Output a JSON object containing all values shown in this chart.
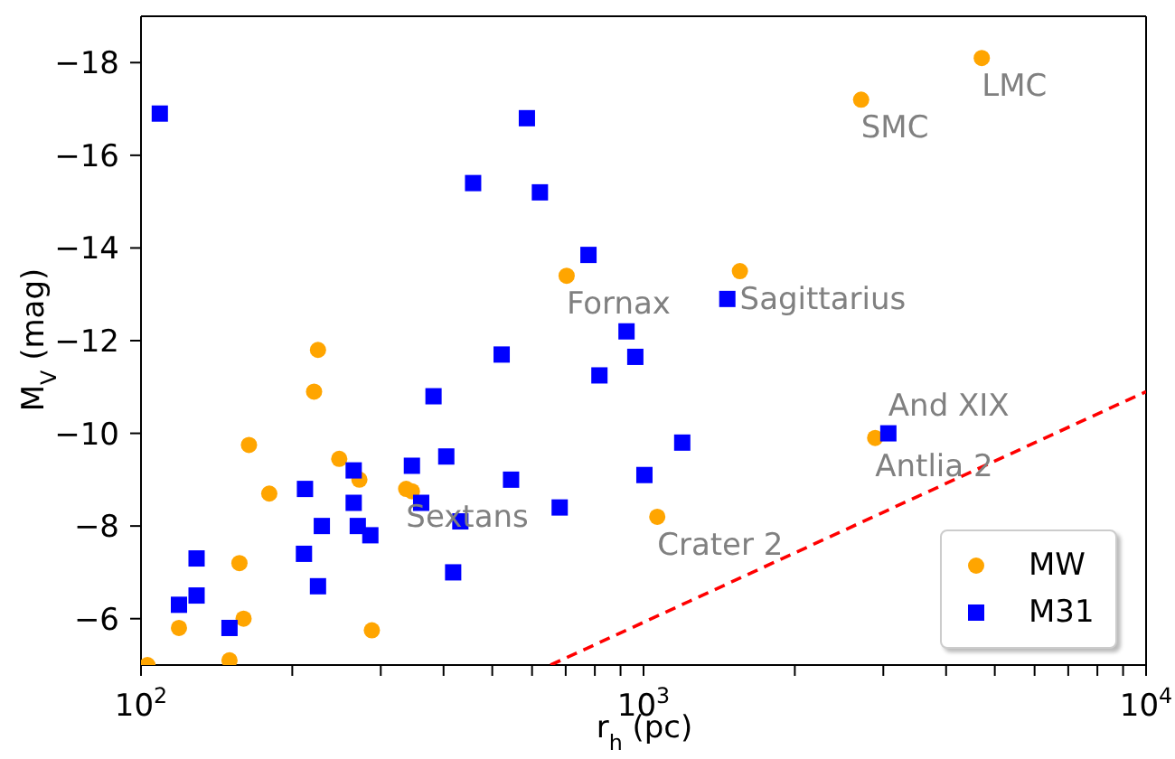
{
  "chart_data": {
    "type": "scatter",
    "xlabel": "r$_{h}$ (pc)",
    "ylabel": "M$_{V}$ (mag)",
    "log": "x",
    "xlim": [
      100,
      10000
    ],
    "xticks": [
      {
        "value": 100,
        "label": "10$^{2}$"
      },
      {
        "value": 200,
        "label": null
      },
      {
        "value": 300,
        "label": null
      },
      {
        "value": 400,
        "label": null
      },
      {
        "value": 500,
        "label": null
      },
      {
        "value": 600,
        "label": null
      },
      {
        "value": 700,
        "label": null
      },
      {
        "value": 800,
        "label": null
      },
      {
        "value": 900,
        "label": null
      },
      {
        "value": 1000,
        "label": "10$^{3}$"
      },
      {
        "value": 2000,
        "label": null
      },
      {
        "value": 3000,
        "label": null
      },
      {
        "value": 4000,
        "label": null
      },
      {
        "value": 5000,
        "label": null
      },
      {
        "value": 6000,
        "label": null
      },
      {
        "value": 7000,
        "label": null
      },
      {
        "value": 8000,
        "label": null
      },
      {
        "value": 9000,
        "label": null
      },
      {
        "value": 10000,
        "label": "10$^{4}$"
      }
    ],
    "ylim": [
      -5,
      -19
    ],
    "yticks": [
      {
        "value": -18,
        "label": "−18"
      },
      {
        "value": -16,
        "label": "−16"
      },
      {
        "value": -14,
        "label": "−14"
      },
      {
        "value": -12,
        "label": "−12"
      },
      {
        "value": -10,
        "label": "−10"
      },
      {
        "value": -8,
        "label": "−8"
      },
      {
        "value": -6,
        "label": "−6"
      }
    ],
    "grid": false,
    "legend": "bottom right",
    "series": [
      {
        "name": "MW",
        "marker": "circle",
        "color": "#ffa500",
        "x": [
          4710,
          2710,
          1555,
          703,
          2890,
          1065,
          221,
          225,
          164,
          248,
          272,
          180,
          337,
          346,
          157,
          119,
          160,
          288,
          103,
          150
        ],
        "values": [
          -18.1,
          -17.2,
          -13.5,
          -13.4,
          -9.9,
          -8.2,
          -10.9,
          -11.8,
          -9.75,
          -9.45,
          -9.0,
          -8.7,
          -8.8,
          -8.75,
          -7.2,
          -5.8,
          -6.0,
          -5.75,
          -5.0,
          -5.1
        ]
      },
      {
        "name": "M31",
        "marker": "square",
        "color": "#0000ff",
        "x": [
          109,
          586,
          458,
          622,
          777,
          925,
          963,
          522,
          817,
          382,
          405,
          346,
          545,
          1004,
          681,
          265,
          212,
          265,
          229,
          270,
          286,
          361,
          432,
          211,
          129,
          225,
          129,
          418,
          119,
          150,
          1194,
          3070,
          1468
        ],
        "values": [
          -16.9,
          -16.8,
          -15.4,
          -15.2,
          -13.85,
          -12.2,
          -11.65,
          -11.7,
          -11.25,
          -10.8,
          -9.5,
          -9.3,
          -9.0,
          -9.1,
          -8.4,
          -9.2,
          -8.8,
          -8.5,
          -8.0,
          -8.0,
          -7.8,
          -8.5,
          -8.1,
          -7.4,
          -7.3,
          -6.7,
          -6.5,
          -7.0,
          -6.3,
          -5.8,
          -9.8,
          -10.0,
          -12.9
        ]
      },
      {
        "type": "line",
        "marker": "none",
        "line_style": "dashed",
        "color": "#ff0000",
        "x": [
          653,
          10000
        ],
        "values": [
          -5,
          -10.9
        ]
      }
    ],
    "annotations": [
      {
        "text": "LMC",
        "x": 4710,
        "y": -18.1
      },
      {
        "text": "SMC",
        "x": 2710,
        "y": -17.2
      },
      {
        "text": "Fornax",
        "x": 703,
        "y": -13.4
      },
      {
        "text": "Sagittarius",
        "x": 1555,
        "y": -13.5
      },
      {
        "text": "And XIX",
        "x": 3070,
        "y": -10.0
      },
      {
        "text": "Antlia 2",
        "x": 2890,
        "y": -9.9
      },
      {
        "text": "Sextans",
        "x": 337,
        "y": -8.8
      },
      {
        "text": "Crater 2",
        "x": 1065,
        "y": -8.2
      }
    ]
  }
}
